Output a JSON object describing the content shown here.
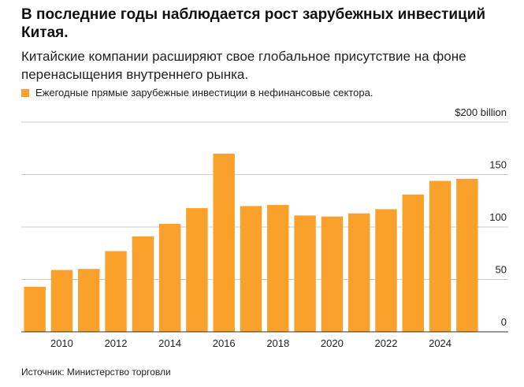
{
  "chart_data": {
    "type": "bar",
    "title": "В последние годы наблюдается рост зарубежных инвестиций Китая.",
    "subtitle": "Китайские компании расширяют свое глобальное присутствие на фоне перенасыщения внутреннего рынка.",
    "source": "Источник: Министерство торговли",
    "categories": [
      null,
      2010,
      null,
      2012,
      null,
      2014,
      null,
      2016,
      null,
      2018,
      null,
      2020,
      null,
      2022,
      null,
      2024,
      null
    ],
    "series": [
      {
        "name": "Ежегодные прямые зарубежные инвестиции в нефинансовые сектора.",
        "color": "#f9a12b",
        "values": [
          43,
          59,
          60,
          77,
          91,
          103,
          118,
          170,
          120,
          121,
          111,
          110,
          113,
          117,
          131,
          144,
          146
        ]
      }
    ],
    "ylim": [
      0,
      200
    ],
    "yticks": [
      0,
      50,
      100,
      150,
      {
        "value": 200,
        "label": "$200 billion"
      }
    ],
    "grid": true
  }
}
